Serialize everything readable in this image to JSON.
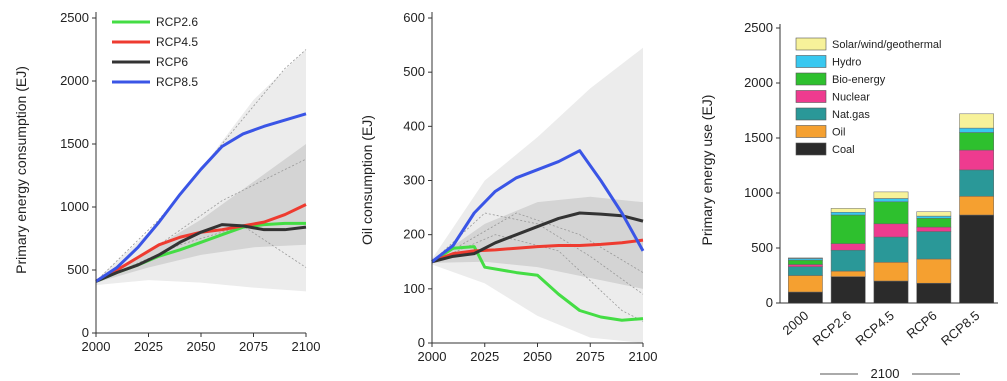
{
  "chart_data": [
    {
      "type": "line",
      "ylabel": "Primary energy consumption (EJ)",
      "xlim": [
        2000,
        2100
      ],
      "ylim": [
        0,
        2500
      ],
      "x_ticks": [
        "2000",
        "2025",
        "2050",
        "2075",
        "2100"
      ],
      "y_ticks": [
        "0",
        "500",
        "1000",
        "1500",
        "2000",
        "2500"
      ],
      "legend_position": "top-left",
      "colors": {
        "RCP2.6": "#44dd44",
        "RCP4.5": "#ee3b30",
        "RCP6": "#333333",
        "RCP8.5": "#3a55e6"
      },
      "series": [
        {
          "name": "RCP2.6",
          "x": [
            2000,
            2010,
            2020,
            2030,
            2040,
            2050,
            2060,
            2070,
            2080,
            2090,
            2100
          ],
          "y": [
            410,
            480,
            540,
            610,
            660,
            720,
            780,
            840,
            860,
            870,
            870
          ]
        },
        {
          "name": "RCP4.5",
          "x": [
            2000,
            2010,
            2020,
            2030,
            2040,
            2050,
            2060,
            2070,
            2080,
            2090,
            2100
          ],
          "y": [
            410,
            500,
            600,
            700,
            760,
            800,
            820,
            850,
            880,
            940,
            1020
          ]
        },
        {
          "name": "RCP6",
          "x": [
            2000,
            2010,
            2020,
            2030,
            2040,
            2050,
            2060,
            2070,
            2080,
            2090,
            2100
          ],
          "y": [
            410,
            480,
            540,
            620,
            720,
            800,
            860,
            850,
            820,
            820,
            840
          ]
        },
        {
          "name": "RCP8.5",
          "x": [
            2000,
            2010,
            2020,
            2030,
            2040,
            2050,
            2060,
            2070,
            2080,
            2090,
            2100
          ],
          "y": [
            410,
            520,
            680,
            880,
            1100,
            1300,
            1480,
            1580,
            1640,
            1690,
            1740
          ]
        }
      ]
    },
    {
      "type": "line",
      "ylabel": "Oil consumption (EJ)",
      "xlim": [
        2000,
        2100
      ],
      "ylim": [
        0,
        600
      ],
      "x_ticks": [
        "2000",
        "2025",
        "2050",
        "2075",
        "2100"
      ],
      "y_ticks": [
        "0",
        "100",
        "200",
        "300",
        "400",
        "500",
        "600"
      ],
      "colors": {
        "RCP2.6": "#44dd44",
        "RCP4.5": "#ee3b30",
        "RCP6": "#333333",
        "RCP8.5": "#3a55e6"
      },
      "series": [
        {
          "name": "RCP2.6",
          "x": [
            2000,
            2010,
            2020,
            2025,
            2040,
            2050,
            2060,
            2070,
            2080,
            2090,
            2100
          ],
          "y": [
            150,
            175,
            178,
            140,
            130,
            125,
            90,
            60,
            48,
            42,
            45
          ]
        },
        {
          "name": "RCP4.5",
          "x": [
            2000,
            2010,
            2020,
            2030,
            2040,
            2050,
            2060,
            2070,
            2080,
            2090,
            2100
          ],
          "y": [
            150,
            165,
            170,
            172,
            175,
            178,
            180,
            180,
            182,
            185,
            190
          ]
        },
        {
          "name": "RCP6",
          "x": [
            2000,
            2010,
            2020,
            2030,
            2040,
            2050,
            2060,
            2070,
            2080,
            2090,
            2100
          ],
          "y": [
            150,
            160,
            165,
            185,
            200,
            215,
            230,
            240,
            238,
            235,
            225
          ]
        },
        {
          "name": "RCP8.5",
          "x": [
            2000,
            2010,
            2020,
            2030,
            2040,
            2050,
            2060,
            2070,
            2080,
            2090,
            2100
          ],
          "y": [
            150,
            180,
            240,
            280,
            305,
            320,
            335,
            355,
            300,
            240,
            170
          ]
        }
      ]
    },
    {
      "type": "bar",
      "stacked": true,
      "ylabel": "Primary energy use (EJ)",
      "ylim": [
        0,
        2500
      ],
      "y_ticks": [
        "0",
        "500",
        "1000",
        "1500",
        "2000",
        "2500"
      ],
      "categories": [
        "2000",
        "RCP2.6",
        "RCP4.5",
        "RCP6",
        "RCP8.5"
      ],
      "group_label": "2100",
      "legend_position": "top-right",
      "series": [
        {
          "name": "Coal",
          "color": "#2b2b2b",
          "values": [
            100,
            240,
            200,
            180,
            800
          ]
        },
        {
          "name": "Oil",
          "color": "#f5a030",
          "values": [
            150,
            50,
            170,
            220,
            170
          ]
        },
        {
          "name": "Nat.gas",
          "color": "#2a9898",
          "values": [
            80,
            190,
            230,
            250,
            240
          ]
        },
        {
          "name": "Nuclear",
          "color": "#ee3b8f",
          "values": [
            20,
            60,
            120,
            40,
            180
          ]
        },
        {
          "name": "Bio-energy",
          "color": "#2ec02e",
          "values": [
            40,
            260,
            200,
            80,
            160
          ]
        },
        {
          "name": "Hydro",
          "color": "#38c8f0",
          "values": [
            15,
            25,
            30,
            20,
            40
          ]
        },
        {
          "name": "Solar/wind/geothermal",
          "color": "#f7f29a",
          "values": [
            5,
            35,
            60,
            40,
            130
          ]
        }
      ]
    }
  ]
}
